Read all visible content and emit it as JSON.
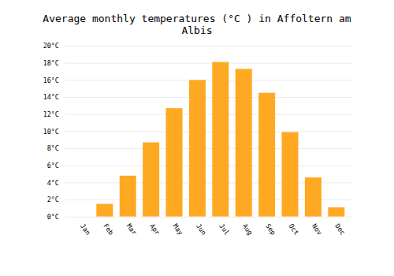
{
  "chart_data": {
    "type": "bar",
    "title": "Average monthly temperatures (°C ) in Affoltern am Albis",
    "categories": [
      "Jan",
      "Feb",
      "Mar",
      "Apr",
      "May",
      "Jun",
      "Jul",
      "Aug",
      "Sep",
      "Oct",
      "Nov",
      "Dec"
    ],
    "values": [
      0.0,
      1.5,
      4.8,
      8.7,
      12.7,
      16.0,
      18.1,
      17.3,
      14.5,
      9.9,
      4.6,
      1.1
    ],
    "color": "#FFA822",
    "ylim": [
      0,
      20
    ],
    "yticks": [
      {
        "value": 0,
        "label": "0°C"
      },
      {
        "value": 2,
        "label": "2°C"
      },
      {
        "value": 4,
        "label": "4°C"
      },
      {
        "value": 6,
        "label": "6°C"
      },
      {
        "value": 8,
        "label": "8°C"
      },
      {
        "value": 10,
        "label": "10°C"
      },
      {
        "value": 12,
        "label": "12°C"
      },
      {
        "value": 14,
        "label": "14°C"
      },
      {
        "value": 16,
        "label": "16°C"
      },
      {
        "value": 18,
        "label": "18°C"
      },
      {
        "value": 20,
        "label": "20°C"
      }
    ],
    "grid": true
  }
}
